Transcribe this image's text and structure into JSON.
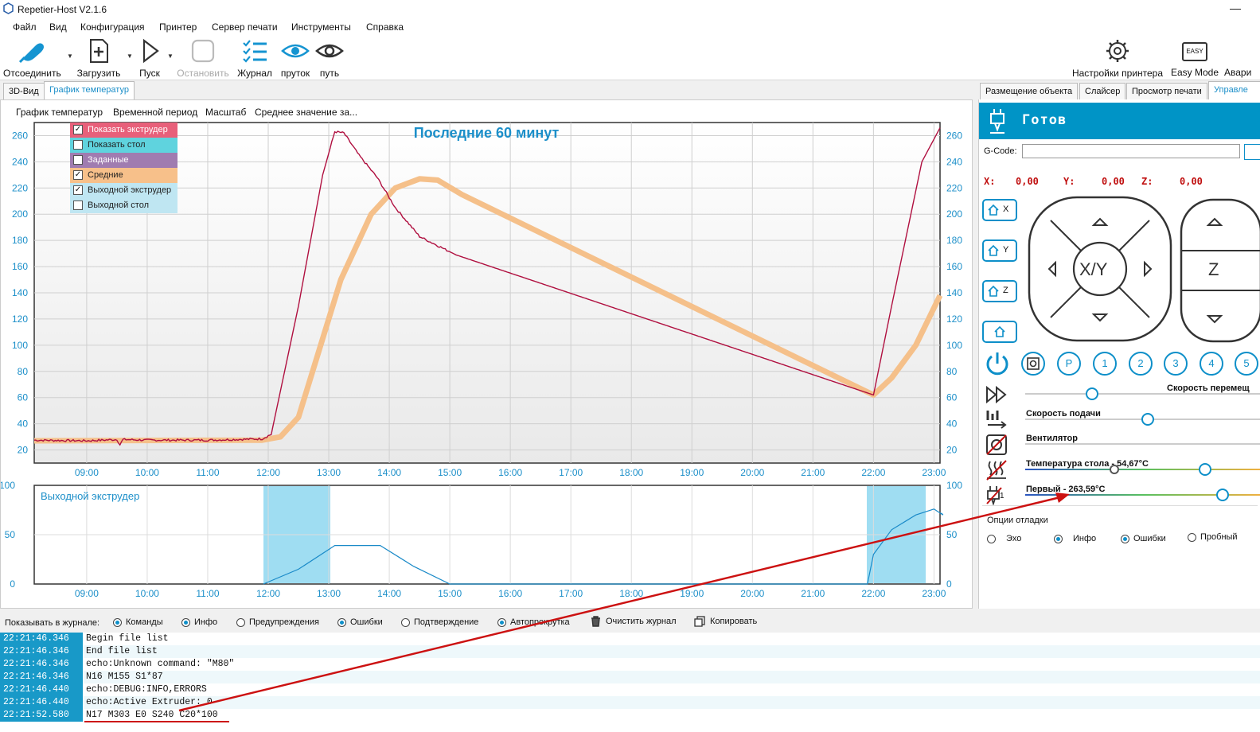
{
  "window": {
    "title": "Repetier-Host V2.1.6"
  },
  "menu": [
    "Файл",
    "Вид",
    "Конфигурация",
    "Принтер",
    "Сервер печати",
    "Инструменты",
    "Справка"
  ],
  "toolbar": {
    "disconnect": "Отсоединить",
    "load": "Загрузить",
    "run": "Пуск",
    "stop": "Остановить",
    "log": "Журнал",
    "filament": "пруток",
    "path": "путь",
    "printer_settings": "Настройки принтера",
    "easy_mode": "Easy Mode",
    "emergency": "Авари",
    "easy_badge": "EASY"
  },
  "left_tabs": [
    "3D-Вид",
    "График температур"
  ],
  "graph_menu": [
    "График температур",
    "Временной период",
    "Масштаб",
    "Среднее значение за..."
  ],
  "graph_title": "Последние 60 минут",
  "legend": [
    {
      "label": "Показать экструдер",
      "checked": true,
      "color": "#e8607a"
    },
    {
      "label": "Показать стол",
      "checked": false,
      "color": "#5fd3de"
    },
    {
      "label": "Заданные",
      "checked": false,
      "color": "#a07cb0"
    },
    {
      "label": "Средние",
      "checked": true,
      "color": "#f7c08a"
    },
    {
      "label": "Выходной экструдер",
      "checked": true,
      "color": "#bfe6f2"
    },
    {
      "label": "Выходной стол",
      "checked": false,
      "color": "#bfe6f2"
    }
  ],
  "upper_y_ticks": [
    "260",
    "240",
    "220",
    "200",
    "180",
    "160",
    "140",
    "120",
    "100",
    "80",
    "60",
    "40",
    "20"
  ],
  "x_ticks": [
    "09:00",
    "10:00",
    "11:00",
    "12:00",
    "13:00",
    "14:00",
    "15:00",
    "16:00",
    "17:00",
    "18:00",
    "19:00",
    "20:00",
    "21:00",
    "22:00",
    "23:00"
  ],
  "lower_y_ticks": [
    "100",
    "50",
    "0"
  ],
  "lower_title": "Выходной экструдер",
  "right_tabs": [
    "Размещение объекта",
    "Слайсер",
    "Просмотр печати",
    "Управле"
  ],
  "status": "Готов",
  "gcode_label": "G-Code:",
  "coords": {
    "x_label": "X:",
    "x": "0,00",
    "y_label": "Y:",
    "y": "0,00",
    "z_label": "Z:",
    "z": "0,00"
  },
  "jog": {
    "xy": "X/Y",
    "z": "Z",
    "home_x": "X",
    "home_y": "Y",
    "home_z": "Z"
  },
  "preset_buttons": [
    "P",
    "1",
    "2",
    "3",
    "4",
    "5"
  ],
  "sliders": {
    "move_speed": "Скорость перемещ",
    "feed_speed": "Скорость подачи",
    "fan": "Вентилятор",
    "bed_temp": "Температура стола - 54,67°C",
    "first": "Первый - 263,59°C",
    "extruder_index": "1"
  },
  "debug": {
    "title": "Опции отладки",
    "options": [
      {
        "label": "Эхо",
        "on": false
      },
      {
        "label": "Инфо",
        "on": true
      },
      {
        "label": "Ошибки",
        "on": true
      },
      {
        "label": "Пробный",
        "on": false
      }
    ]
  },
  "log_filters": {
    "show_label": "Показывать в журнале:",
    "options": [
      {
        "label": "Команды",
        "on": true
      },
      {
        "label": "Инфо",
        "on": true
      },
      {
        "label": "Предупреждения",
        "on": false
      },
      {
        "label": "Ошибки",
        "on": true
      },
      {
        "label": "Подтверждение",
        "on": false
      },
      {
        "label": "Автопрокрутка",
        "on": true
      }
    ],
    "clear": "Очистить журнал",
    "copy": "Копировать"
  },
  "log_lines": [
    {
      "time": "22:21:46.346",
      "text": "Begin file list"
    },
    {
      "time": "22:21:46.346",
      "text": "End file list"
    },
    {
      "time": "22:21:46.346",
      "text": "echo:Unknown command: \"M80\""
    },
    {
      "time": "22:21:46.346",
      "text": "N16 M155 S1*87"
    },
    {
      "time": "22:21:46.440",
      "text": "echo:DEBUG:INFO,ERRORS"
    },
    {
      "time": "22:21:46.440",
      "text": "echo:Active Extruder: 0"
    },
    {
      "time": "22:21:52.580",
      "text": "N17 M303 E0 S240 C20*100"
    }
  ],
  "colors": {
    "accent": "#0094c6",
    "extruder_line": "#b01040",
    "average_line": "#f5c08a",
    "output_fill": "#9fddf2",
    "annotation": "#cc1111"
  }
}
